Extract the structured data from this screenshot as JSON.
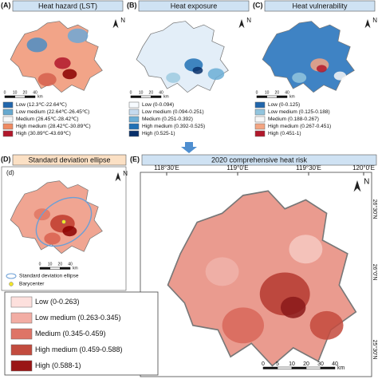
{
  "panels": {
    "a": {
      "label": "(A)",
      "title": "Heat hazard (LST)",
      "north": "N",
      "scale": [
        "0",
        "10",
        "20",
        "40"
      ],
      "scale_unit": "km",
      "legend": [
        "Low (12.3℃-22.64℃)",
        "Low medium (22.64℃-26.45℃)",
        "Medium (26.45℃-28.42℃)",
        "High medium (28.42℃-30.89℃)",
        "High (30.89℃-43.69℃)"
      ]
    },
    "b": {
      "label": "(B)",
      "title": "Heat exposure",
      "north": "N",
      "scale": [
        "0",
        "10",
        "20",
        "40"
      ],
      "scale_unit": "km",
      "legend": [
        "Low (0-0.094)",
        "Low medium (0.094-0.251)",
        "Medium (0.251-0.392)",
        "High medium (0.392-0.525)",
        "High (0.525-1)"
      ]
    },
    "c": {
      "label": "(C)",
      "title": "Heat vulnerability",
      "north": "N",
      "scale": [
        "0",
        "10",
        "20",
        "40"
      ],
      "scale_unit": "km",
      "legend": [
        "Low (0-0.125)",
        "Low medium (0.125-0.188)",
        "Medium (0.188-0.267)",
        "High medium (0.267-0.451)",
        "High (0.451-1)"
      ]
    },
    "d": {
      "label": "(D)",
      "title": "Standard deviation ellipse",
      "inset_label": "(d)",
      "north": "N",
      "scale": [
        "0",
        "10",
        "20",
        "40"
      ],
      "scale_unit": "km",
      "legend": [
        "Standard deviation ellipse",
        "Barycenter"
      ]
    },
    "e": {
      "label": "(E)",
      "title": "2020 comprehensive heat risk",
      "north": "N",
      "scale": [
        "0",
        "5",
        "10",
        "20",
        "30",
        "40"
      ],
      "scale_unit": "km",
      "lon_labels": [
        "118°30'E",
        "119°0'E",
        "119°30'E",
        "120°0'E"
      ],
      "lat_labels": [
        "26°30'N",
        "26°0'N",
        "25°30'N"
      ],
      "legend": [
        "Low (0-0.263)",
        "Low medium (0.263-0.345)",
        "Medium (0.345-0.459)",
        "High medium (0.459-0.588)",
        "High (0.588-1)"
      ]
    }
  }
}
